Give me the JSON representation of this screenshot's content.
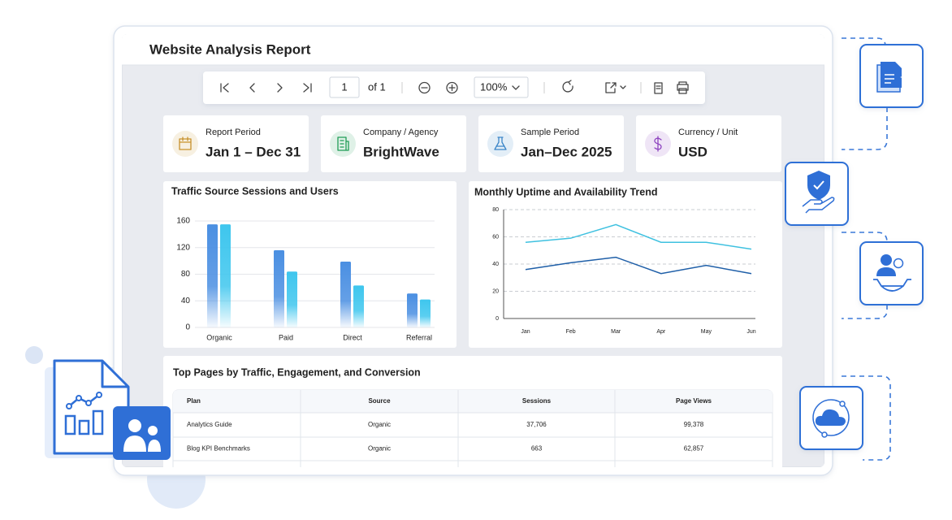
{
  "header": {
    "title": "Website Analysis Report"
  },
  "toolbar": {
    "page": "1",
    "page_count": "of 1",
    "zoom": "100%"
  },
  "cards": [
    {
      "label": "Report Period",
      "value": "Jan 1 – Dec 31",
      "color": "#c8922e"
    },
    {
      "label": "Company / Agency",
      "value": "BrightWave",
      "color": "#1f9d55"
    },
    {
      "label": "Sample Period",
      "value": "Jan–Dec 2025",
      "color": "#3b86c8"
    },
    {
      "label": "Currency / Unit",
      "value": "USD",
      "color": "#8e44c0"
    }
  ],
  "charts": [
    {
      "type": "bar",
      "title": "Traffic Source Sessions and Users",
      "categories": [
        "Organic",
        "Paid",
        "Direct",
        "Referral"
      ],
      "series": [
        {
          "color": "#4a8fe2",
          "values": [
            155,
            116,
            99,
            51
          ]
        },
        {
          "color": "#3ec6ee",
          "values": [
            155,
            84,
            63,
            42
          ]
        }
      ],
      "ylim": [
        0,
        160
      ],
      "yticks": [
        0,
        40,
        80,
        120,
        160
      ],
      "grid": true
    },
    {
      "type": "line",
      "title": "Monthly Uptime and Availability Trend",
      "categories": [
        "Jan",
        "Feb",
        "Mar",
        "Apr",
        "May",
        "Jun"
      ],
      "series": [
        {
          "color": "#3fc1e0",
          "values": [
            56,
            59,
            69,
            56,
            56,
            51
          ]
        },
        {
          "color": "#1f5fa8",
          "values": [
            36,
            41,
            45,
            33,
            39,
            33
          ]
        }
      ],
      "ylim": [
        0,
        80
      ],
      "yticks": [
        0,
        20,
        40,
        60,
        80
      ],
      "grid": true
    }
  ],
  "table": {
    "title": "Top Pages by Traffic, Engagement, and Conversion",
    "columns": [
      "Plan",
      "Source",
      "Sessions",
      "Page Views"
    ],
    "rows": [
      [
        "Analytics Guide",
        "Organic",
        "37,706",
        "99,378"
      ],
      [
        "Blog KPI Benchmarks",
        "Organic",
        "663",
        "62,857"
      ]
    ]
  }
}
